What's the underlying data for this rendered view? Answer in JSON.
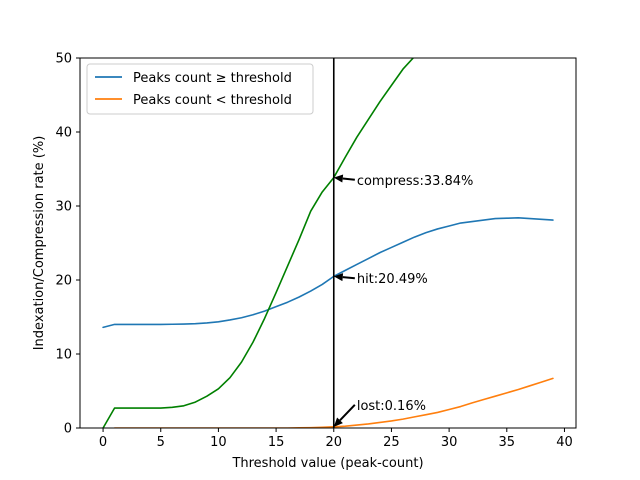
{
  "chart_data": {
    "type": "line",
    "title": "",
    "xlabel": "Threshold value (peak-count)",
    "ylabel": "Indexation/Compression rate (%)",
    "xlim": [
      -2,
      41
    ],
    "ylim": [
      0,
      50
    ],
    "x_ticks": [
      0,
      5,
      10,
      15,
      20,
      25,
      30,
      35,
      40
    ],
    "y_ticks": [
      0,
      10,
      20,
      30,
      40,
      50
    ],
    "grid": false,
    "legend_position": "top-left",
    "x": [
      0,
      1,
      2,
      3,
      4,
      5,
      6,
      7,
      8,
      9,
      10,
      11,
      12,
      13,
      14,
      15,
      16,
      17,
      18,
      19,
      20,
      21,
      22,
      23,
      24,
      25,
      26,
      27,
      28,
      29,
      30,
      31,
      32,
      33,
      34,
      35,
      36,
      37,
      38,
      39
    ],
    "series": [
      {
        "name": "Peaks count ≥ threshold",
        "color": "#1f77b4",
        "values": [
          13.6,
          14.0,
          14.0,
          14.0,
          14.0,
          14.0,
          14.02,
          14.05,
          14.1,
          14.2,
          14.35,
          14.6,
          14.9,
          15.3,
          15.8,
          16.4,
          17.0,
          17.7,
          18.5,
          19.4,
          20.49,
          21.3,
          22.1,
          22.9,
          23.7,
          24.4,
          25.1,
          25.8,
          26.4,
          26.9,
          27.3,
          27.7,
          27.9,
          28.1,
          28.3,
          28.35,
          28.4,
          28.3,
          28.2,
          28.1
        ]
      },
      {
        "name": "Peaks count < threshold",
        "color": "#ff7f0e",
        "values": [
          null,
          0,
          0,
          0,
          0,
          0,
          0,
          0,
          0,
          0,
          0,
          0,
          0,
          0,
          0,
          0,
          0,
          0.02,
          0.05,
          0.1,
          0.16,
          0.25,
          0.4,
          0.55,
          0.75,
          0.95,
          1.2,
          1.5,
          1.8,
          2.1,
          2.5,
          2.9,
          3.4,
          3.85,
          4.3,
          4.75,
          5.2,
          5.7,
          6.2,
          6.7
        ]
      },
      {
        "color": "#008000",
        "values": [
          0,
          2.7,
          2.7,
          2.7,
          2.7,
          2.7,
          2.8,
          3.0,
          3.5,
          4.3,
          5.3,
          6.8,
          8.9,
          11.6,
          14.8,
          18.3,
          21.9,
          25.5,
          29.3,
          31.9,
          33.84,
          36.6,
          39.3,
          41.7,
          44.1,
          46.3,
          48.5,
          50.2,
          null,
          null,
          null,
          null,
          null,
          null,
          null,
          null,
          null,
          null,
          null,
          null
        ]
      }
    ],
    "vline": {
      "x": 20,
      "color": "#000000"
    },
    "annotations": [
      {
        "id": "compress",
        "text": "compress:33.84%",
        "point": [
          20,
          33.84
        ],
        "text_pos": [
          22,
          33
        ]
      },
      {
        "id": "hit",
        "text": "hit:20.49%",
        "point": [
          20,
          20.49
        ],
        "text_pos": [
          22,
          19.7
        ]
      },
      {
        "id": "lost",
        "text": "lost:0.16%",
        "point": [
          20,
          0.16
        ],
        "text_pos": [
          22,
          2.6
        ]
      }
    ]
  }
}
